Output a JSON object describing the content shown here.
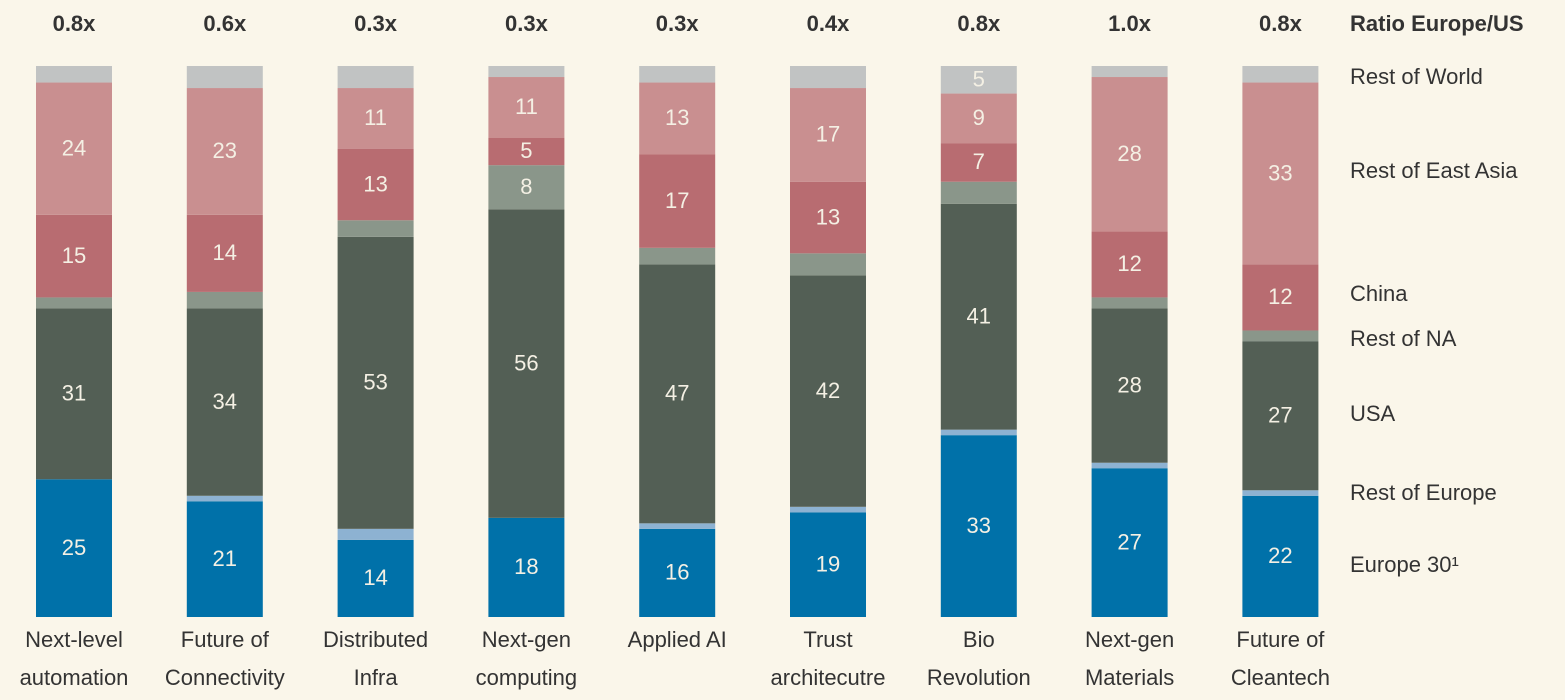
{
  "chart_data": {
    "type": "stacked_bar",
    "ratio_title": "Ratio Europe/US",
    "ratios": [
      "0.8x",
      "0.6x",
      "0.3x",
      "0.3x",
      "0.3x",
      "0.4x",
      "0.8x",
      "1.0x",
      "0.8x"
    ],
    "categories": [
      [
        "Next-level",
        "automation"
      ],
      [
        "Future of",
        "Connectivity"
      ],
      [
        "Distributed",
        "Infra"
      ],
      [
        "Next-gen",
        "computing"
      ],
      [
        "Applied AI"
      ],
      [
        "Trust",
        "architecutre"
      ],
      [
        "Bio",
        "Revolution"
      ],
      [
        "Next-gen",
        "Materials"
      ],
      [
        "Future of",
        "Cleantech"
      ]
    ],
    "ylim": [
      0,
      100
    ],
    "series": [
      {
        "name": "Europe 30¹",
        "color": "#0071a9",
        "values": [
          25,
          21,
          14,
          18,
          16,
          19,
          33,
          27,
          22
        ],
        "value_labels": [
          25,
          21,
          14,
          18,
          16,
          19,
          33,
          27,
          22
        ]
      },
      {
        "name": "Rest of Europe",
        "color": "#8db2d2",
        "values": [
          0,
          1,
          2,
          0,
          1,
          1,
          1,
          1,
          1
        ],
        "value_labels": [
          null,
          null,
          null,
          null,
          null,
          null,
          null,
          null,
          null
        ]
      },
      {
        "name": "USA",
        "color": "#535f55",
        "values": [
          31,
          34,
          53,
          56,
          47,
          42,
          41,
          28,
          27
        ],
        "value_labels": [
          31,
          34,
          53,
          56,
          47,
          42,
          41,
          28,
          27
        ]
      },
      {
        "name": "Rest of NA",
        "color": "#8a968a",
        "values": [
          2,
          3,
          3,
          8,
          3,
          4,
          4,
          2,
          2
        ],
        "value_labels": [
          null,
          null,
          null,
          8,
          null,
          null,
          null,
          null,
          null
        ]
      },
      {
        "name": "China",
        "color": "#b86c71",
        "values": [
          15,
          14,
          13,
          5,
          17,
          13,
          7,
          12,
          12
        ],
        "value_labels": [
          15,
          14,
          13,
          5,
          17,
          13,
          7,
          12,
          12
        ]
      },
      {
        "name": "Rest of East Asia",
        "color": "#c98f90",
        "values": [
          24,
          23,
          11,
          11,
          13,
          17,
          9,
          28,
          33
        ],
        "value_labels": [
          24,
          23,
          11,
          11,
          13,
          17,
          9,
          28,
          33
        ]
      },
      {
        "name": "Rest of World",
        "color": "#c1c3c3",
        "values": [
          3,
          4,
          4,
          2,
          3,
          4,
          5,
          2,
          3
        ],
        "value_labels": [
          null,
          null,
          null,
          null,
          null,
          null,
          5,
          null,
          null
        ]
      }
    ]
  }
}
